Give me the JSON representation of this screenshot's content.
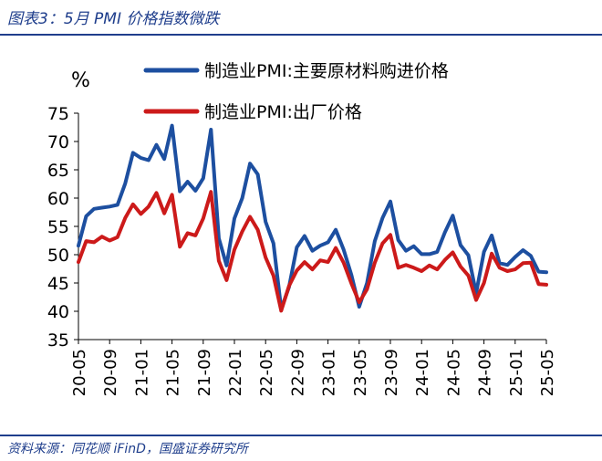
{
  "figure_title": "图表3：5月 PMI 价格指数微跌",
  "source": "资料来源：同花顺 iFinD，国盛证券研究所",
  "colors": {
    "accent": "#1f3e8c",
    "series_blue": "#1d4fa0",
    "series_red": "#cc1a1a"
  },
  "chart_data": {
    "type": "line",
    "ylabel": "%",
    "ylim": [
      35,
      75
    ],
    "yticks": [
      35,
      40,
      45,
      50,
      55,
      60,
      65,
      70,
      75
    ],
    "xtick_labels": [
      "20-05",
      "20-09",
      "21-01",
      "21-05",
      "21-09",
      "22-01",
      "22-05",
      "22-09",
      "23-01",
      "23-05",
      "23-09",
      "24-01",
      "24-05",
      "24-09",
      "25-01",
      "25-05"
    ],
    "legend_position": "top",
    "grid": false,
    "x": [
      "20-05",
      "20-06",
      "20-07",
      "20-08",
      "20-09",
      "20-10",
      "20-11",
      "20-12",
      "21-01",
      "21-02",
      "21-03",
      "21-04",
      "21-05",
      "21-06",
      "21-07",
      "21-08",
      "21-09",
      "21-10",
      "21-11",
      "21-12",
      "22-01",
      "22-02",
      "22-03",
      "22-04",
      "22-05",
      "22-06",
      "22-07",
      "22-08",
      "22-09",
      "22-10",
      "22-11",
      "22-12",
      "23-01",
      "23-02",
      "23-03",
      "23-04",
      "23-05",
      "23-06",
      "23-07",
      "23-08",
      "23-09",
      "23-10",
      "23-11",
      "23-12",
      "24-01",
      "24-02",
      "24-03",
      "24-04",
      "24-05",
      "24-06",
      "24-07",
      "24-08",
      "24-09",
      "24-10",
      "24-11",
      "24-12",
      "25-01",
      "25-02",
      "25-03",
      "25-04",
      "25-05"
    ],
    "series": [
      {
        "name": "制造业PMI:主要原材料购进价格",
        "color": "#1d4fa0",
        "values": [
          51.6,
          56.8,
          58.1,
          58.3,
          58.5,
          58.8,
          62.6,
          68.0,
          67.1,
          66.7,
          69.4,
          66.9,
          72.8,
          61.2,
          62.9,
          61.3,
          63.5,
          72.1,
          52.9,
          48.1,
          56.4,
          60.0,
          66.1,
          64.2,
          55.8,
          52.0,
          40.4,
          44.3,
          51.3,
          53.3,
          50.7,
          51.6,
          52.2,
          54.4,
          50.9,
          46.4,
          40.8,
          45.0,
          52.4,
          56.5,
          59.4,
          52.6,
          50.7,
          51.5,
          50.1,
          50.1,
          50.5,
          54.0,
          56.9,
          51.7,
          49.9,
          43.2,
          50.5,
          53.4,
          48.5,
          48.2,
          49.6,
          50.8,
          49.8,
          47.0,
          46.9
        ]
      },
      {
        "name": "制造业PMI:出厂价格",
        "color": "#cc1a1a",
        "values": [
          48.7,
          52.4,
          52.2,
          53.2,
          52.5,
          53.1,
          56.5,
          58.9,
          57.2,
          58.5,
          60.9,
          57.3,
          60.6,
          51.4,
          53.8,
          53.4,
          56.4,
          61.1,
          48.9,
          45.5,
          50.9,
          54.1,
          56.7,
          54.4,
          49.5,
          46.3,
          40.1,
          44.5,
          47.2,
          48.7,
          47.4,
          49.0,
          48.7,
          51.2,
          48.6,
          44.9,
          41.6,
          43.9,
          48.6,
          52.0,
          53.5,
          47.7,
          48.2,
          47.7,
          47.1,
          48.1,
          47.4,
          49.1,
          50.4,
          47.9,
          46.3,
          42.0,
          45.0,
          50.2,
          47.7,
          47.1,
          47.4,
          48.5,
          48.6,
          44.8,
          44.7
        ]
      }
    ]
  }
}
